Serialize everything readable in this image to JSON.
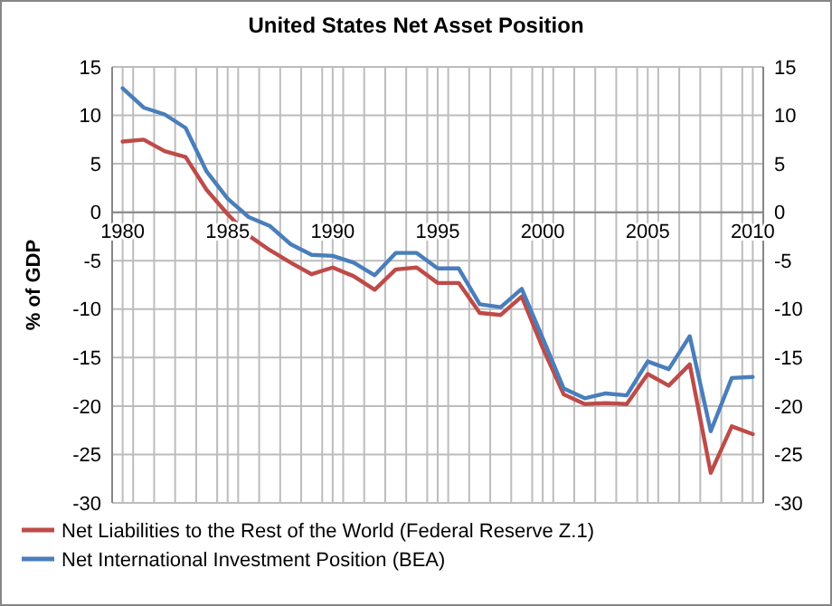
{
  "chart_data": {
    "type": "line",
    "title": "United States Net Asset Position",
    "ylabel": "% of GDP",
    "x": [
      1980,
      1981,
      1982,
      1983,
      1984,
      1985,
      1986,
      1987,
      1988,
      1989,
      1990,
      1991,
      1992,
      1993,
      1994,
      1995,
      1996,
      1997,
      1998,
      1999,
      2000,
      2001,
      2002,
      2003,
      2004,
      2005,
      2006,
      2007,
      2008,
      2009,
      2010
    ],
    "series": [
      {
        "name": "Net Liabilities to the Rest of the World (Federal Reserve Z.1)",
        "color": "#be4b48",
        "values": [
          7.3,
          7.5,
          6.3,
          5.7,
          2.3,
          -0.2,
          -2.4,
          -3.9,
          -5.2,
          -6.4,
          -5.7,
          -6.6,
          -8.0,
          -5.9,
          -5.7,
          -7.3,
          -7.3,
          -10.4,
          -10.6,
          -8.7,
          -14.0,
          -18.8,
          -19.8,
          -19.7,
          -19.8,
          -16.7,
          -17.9,
          -15.7,
          -26.9,
          -22.1,
          -22.9
        ]
      },
      {
        "name": "Net International Investment Position (BEA)",
        "color": "#4a7ebb",
        "values": [
          12.8,
          10.8,
          10.1,
          8.7,
          4.2,
          1.4,
          -0.5,
          -1.4,
          -3.3,
          -4.4,
          -4.5,
          -5.2,
          -6.5,
          -4.2,
          -4.2,
          -5.8,
          -5.8,
          -9.5,
          -9.8,
          -7.9,
          -13.0,
          -18.2,
          -19.2,
          -18.7,
          -18.9,
          -15.4,
          -16.2,
          -12.8,
          -22.6,
          -17.1,
          -17.0
        ]
      }
    ],
    "xlim": [
      1979.5,
      2010.5
    ],
    "xticks": [
      1980,
      1985,
      1990,
      1995,
      2000,
      2005,
      2010,
      {
        "value": 1979.5,
        "label": null
      },
      {
        "value": 1980.5,
        "label": null
      },
      {
        "value": 1981.5,
        "label": null
      },
      {
        "value": 1982.5,
        "label": null
      },
      {
        "value": 1983.5,
        "label": null
      },
      {
        "value": 1984.5,
        "label": null
      },
      {
        "value": 1985.5,
        "label": null
      },
      {
        "value": 1986.5,
        "label": null
      },
      {
        "value": 1987.5,
        "label": null
      },
      {
        "value": 1988.5,
        "label": null
      },
      {
        "value": 1989.5,
        "label": null
      },
      {
        "value": 1990.5,
        "label": null
      },
      {
        "value": 1991.5,
        "label": null
      },
      {
        "value": 1992.5,
        "label": null
      },
      {
        "value": 1993.5,
        "label": null
      },
      {
        "value": 1994.5,
        "label": null
      },
      {
        "value": 1995.5,
        "label": null
      },
      {
        "value": 1996.5,
        "label": null
      },
      {
        "value": 1997.5,
        "label": null
      },
      {
        "value": 1998.5,
        "label": null
      },
      {
        "value": 1999.5,
        "label": null
      },
      {
        "value": 2000.5,
        "label": null
      },
      {
        "value": 2001.5,
        "label": null
      },
      {
        "value": 2002.5,
        "label": null
      },
      {
        "value": 2003.5,
        "label": null
      },
      {
        "value": 2004.5,
        "label": null
      },
      {
        "value": 2005.5,
        "label": null
      },
      {
        "value": 2006.5,
        "label": null
      },
      {
        "value": 2007.5,
        "label": null
      },
      {
        "value": 2008.5,
        "label": null
      },
      {
        "value": 2009.5,
        "label": null
      },
      {
        "value": 2010.5,
        "label": null
      }
    ],
    "ylim": [
      -30,
      15
    ],
    "yticks": [
      -30,
      -25,
      -20,
      -15,
      -10,
      -5,
      0,
      5,
      10,
      15
    ],
    "y2lim": [
      -30,
      15
    ],
    "y2ticks": [
      -30,
      -25,
      -20,
      -15,
      -10,
      -5,
      0,
      5,
      10,
      15
    ],
    "grid": true,
    "legend": "bottom",
    "marker": "none",
    "line_style": "solid"
  }
}
